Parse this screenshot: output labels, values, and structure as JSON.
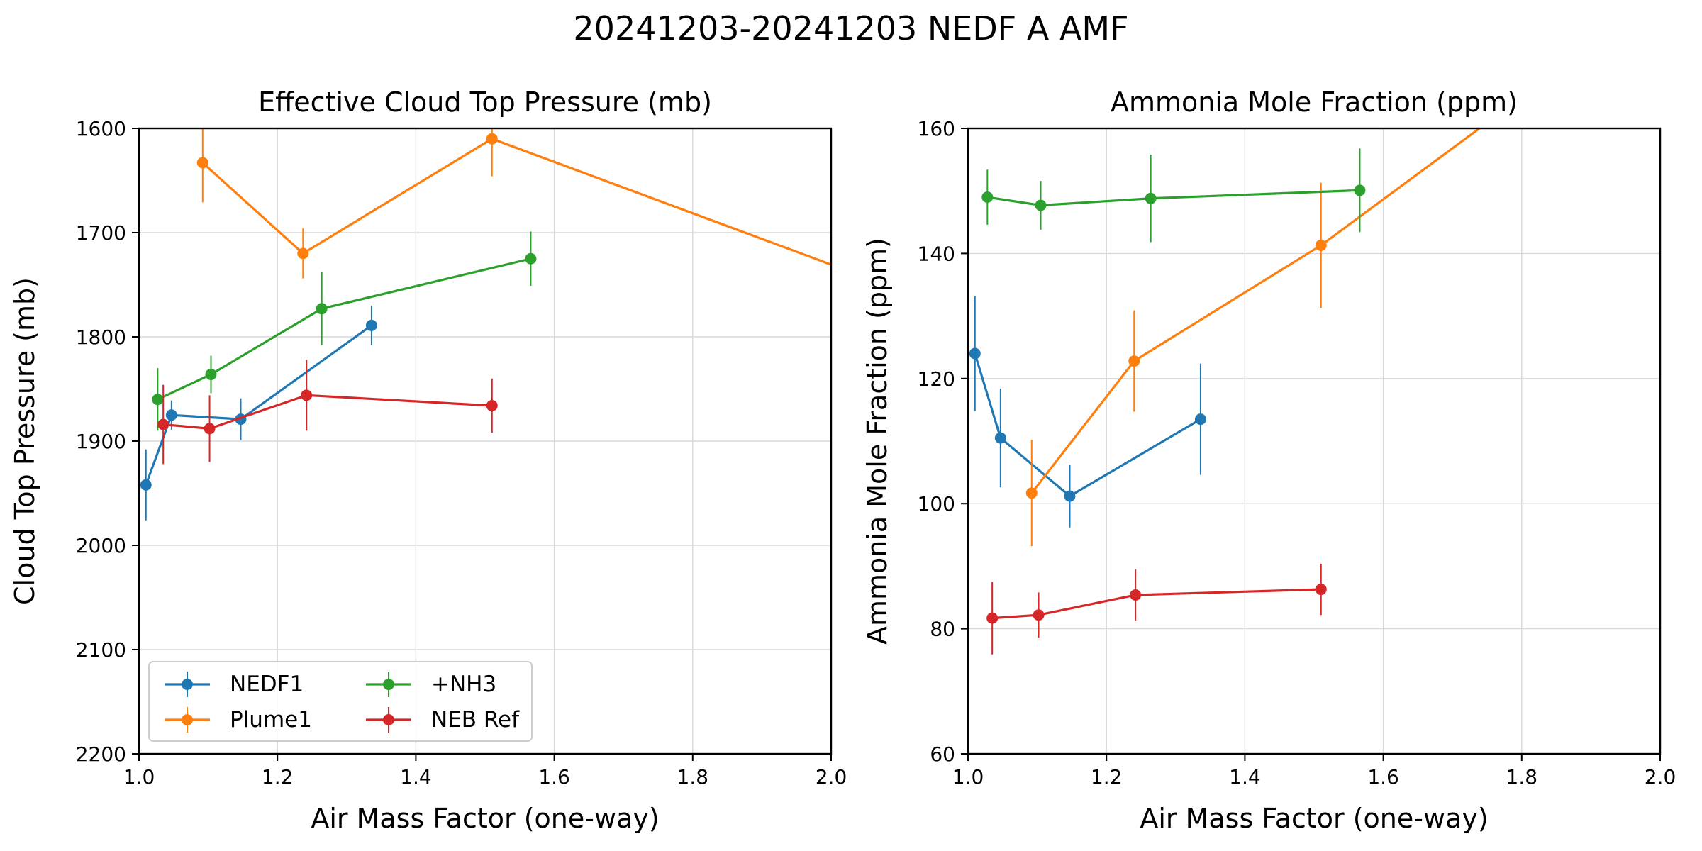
{
  "figure_title": "20241203-20241203 NEDF A AMF",
  "colors": {
    "NEDF1": "#1f77b4",
    "Plume1": "#ff7f0e",
    "+NH3": "#2ca02c",
    "NEB Ref": "#d62728"
  },
  "chart_data": [
    {
      "type": "line",
      "title": "Effective Cloud Top Pressure (mb)",
      "xlabel": "Air Mass Factor (one-way)",
      "ylabel": "Cloud Top Pressure (mb)",
      "xlim": [
        1.0,
        2.0
      ],
      "ylim": [
        2200,
        1600
      ],
      "y_inverted": true,
      "xticks": [
        "1.0",
        "1.2",
        "1.4",
        "1.6",
        "1.8",
        "2.0"
      ],
      "yticks": [
        "1600",
        "1700",
        "1800",
        "1900",
        "2000",
        "2100",
        "2200"
      ],
      "grid": true,
      "legend": {
        "placement": "lower-left",
        "columns": 2,
        "entries": [
          "NEDF1",
          "Plume1",
          "+NH3",
          "NEB Ref"
        ]
      },
      "series": [
        {
          "name": "NEDF1",
          "x": [
            1.01,
            1.047,
            1.147,
            1.336
          ],
          "y": [
            1942,
            1875,
            1879,
            1789
          ],
          "yerr": [
            34,
            14,
            20,
            19
          ]
        },
        {
          "name": "Plume1",
          "x": [
            1.092,
            1.237,
            1.51,
            2.05
          ],
          "y": [
            1633,
            1720,
            1610,
            1743
          ],
          "yerr": [
            38,
            24,
            36,
            0
          ]
        },
        {
          "name": "+NH3",
          "x": [
            1.027,
            1.104,
            1.264,
            1.566
          ],
          "y": [
            1860,
            1836,
            1773,
            1725
          ],
          "yerr": [
            30,
            18,
            35,
            26
          ]
        },
        {
          "name": "NEB Ref",
          "x": [
            1.035,
            1.102,
            1.242,
            1.51
          ],
          "y": [
            1884,
            1888,
            1856,
            1866
          ],
          "yerr": [
            38,
            32,
            34,
            26
          ]
        }
      ]
    },
    {
      "type": "line",
      "title": "Ammonia Mole Fraction (ppm)",
      "xlabel": "Air Mass Factor (one-way)",
      "ylabel": "Ammonia Mole Fraction (ppm)",
      "xlim": [
        1.0,
        2.0
      ],
      "ylim": [
        60,
        160
      ],
      "xticks": [
        "1.0",
        "1.2",
        "1.4",
        "1.6",
        "1.8",
        "2.0"
      ],
      "yticks": [
        "60",
        "80",
        "100",
        "120",
        "140",
        "160"
      ],
      "grid": true,
      "series": [
        {
          "name": "NEDF1",
          "x": [
            1.01,
            1.047,
            1.147,
            1.336
          ],
          "y": [
            124,
            110.5,
            101.2,
            113.5
          ],
          "yerr": [
            9.2,
            7.9,
            5,
            8.9
          ]
        },
        {
          "name": "Plume1",
          "x": [
            1.092,
            1.24,
            1.51,
            2.1
          ],
          "y": [
            101.7,
            122.8,
            141.3,
            189.5
          ],
          "yerr": [
            8.5,
            8.1,
            10,
            0
          ]
        },
        {
          "name": "+NH3",
          "x": [
            1.028,
            1.105,
            1.264,
            1.566
          ],
          "y": [
            149,
            147.7,
            148.8,
            150.1
          ],
          "yerr": [
            4.4,
            3.9,
            7,
            6.7
          ]
        },
        {
          "name": "NEB Ref",
          "x": [
            1.035,
            1.102,
            1.242,
            1.51
          ],
          "y": [
            81.7,
            82.2,
            85.4,
            86.3
          ],
          "yerr": [
            5.8,
            3.6,
            4.1,
            4.1
          ]
        }
      ]
    }
  ]
}
